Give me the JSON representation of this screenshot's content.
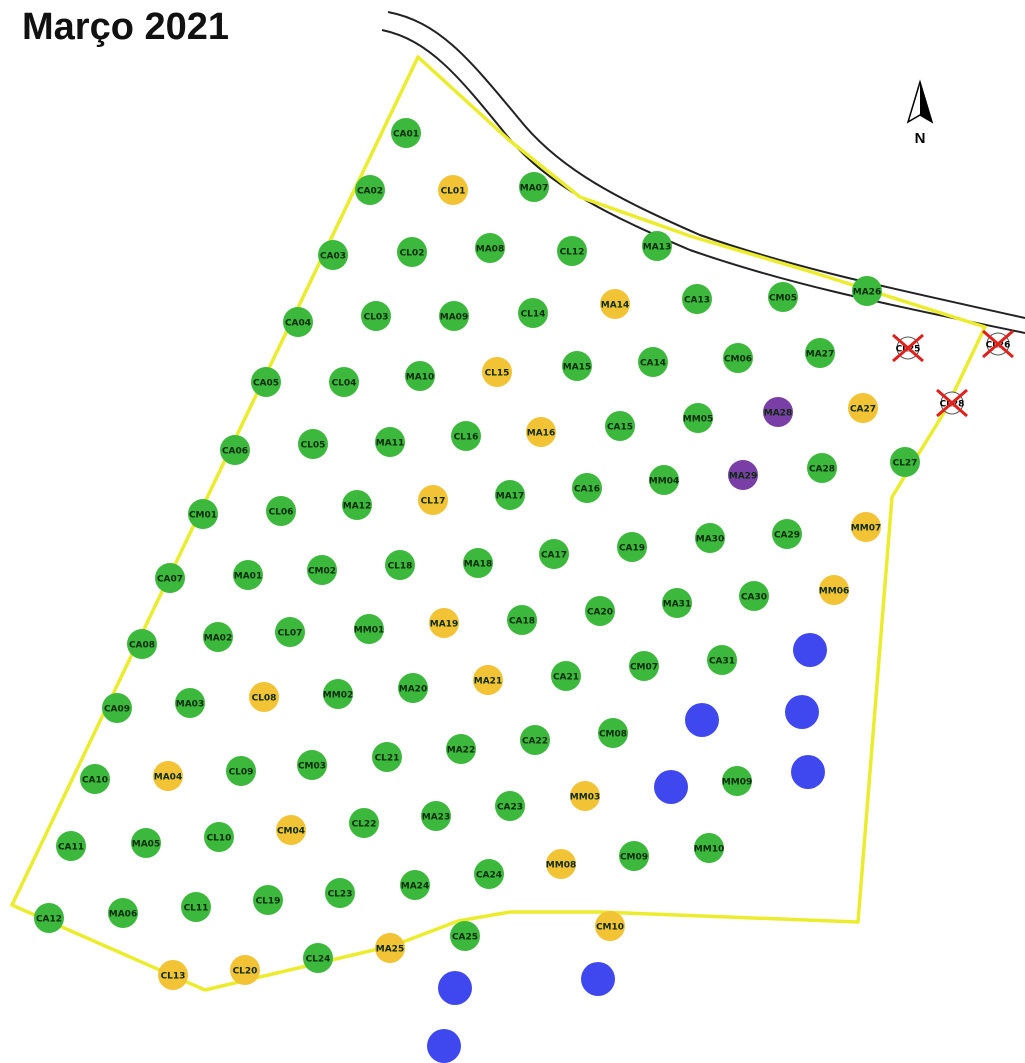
{
  "title": "Março 2021",
  "north_label": "N",
  "colors": {
    "healthy": "#3cb93c",
    "warning": "#f2c335",
    "purple": "#7a3fa6",
    "new_planting": "#3f48ee",
    "boundary": "#ecec2f",
    "removed_mark": "#e0201b",
    "road": "#222222"
  },
  "trees": [
    {
      "label": "CA01",
      "status": "healthy"
    },
    {
      "label": "CA02",
      "status": "healthy"
    },
    {
      "label": "CL01",
      "status": "warning"
    },
    {
      "label": "MA07",
      "status": "healthy"
    },
    {
      "label": "CA03",
      "status": "healthy"
    },
    {
      "label": "CL02",
      "status": "healthy"
    },
    {
      "label": "MA08",
      "status": "healthy"
    },
    {
      "label": "CL12",
      "status": "healthy"
    },
    {
      "label": "MA13",
      "status": "healthy"
    },
    {
      "label": "CA04",
      "status": "healthy"
    },
    {
      "label": "CL03",
      "status": "healthy"
    },
    {
      "label": "MA09",
      "status": "healthy"
    },
    {
      "label": "CL14",
      "status": "healthy"
    },
    {
      "label": "MA14",
      "status": "warning"
    },
    {
      "label": "CA13",
      "status": "healthy"
    },
    {
      "label": "CM05",
      "status": "healthy"
    },
    {
      "label": "MA26",
      "status": "healthy"
    },
    {
      "label": "CA05",
      "status": "healthy"
    },
    {
      "label": "CL04",
      "status": "healthy"
    },
    {
      "label": "MA10",
      "status": "healthy"
    },
    {
      "label": "CL15",
      "status": "warning"
    },
    {
      "label": "MA15",
      "status": "healthy"
    },
    {
      "label": "CA14",
      "status": "healthy"
    },
    {
      "label": "CM06",
      "status": "healthy"
    },
    {
      "label": "MA27",
      "status": "healthy"
    },
    {
      "label": "CA06",
      "status": "healthy"
    },
    {
      "label": "CL05",
      "status": "healthy"
    },
    {
      "label": "MA11",
      "status": "healthy"
    },
    {
      "label": "CL16",
      "status": "healthy"
    },
    {
      "label": "MA16",
      "status": "warning"
    },
    {
      "label": "CA15",
      "status": "healthy"
    },
    {
      "label": "MM05",
      "status": "healthy"
    },
    {
      "label": "MA28",
      "status": "purple"
    },
    {
      "label": "CA27",
      "status": "warning"
    },
    {
      "label": "CM01",
      "status": "healthy"
    },
    {
      "label": "CL06",
      "status": "healthy"
    },
    {
      "label": "MA12",
      "status": "healthy"
    },
    {
      "label": "CL17",
      "status": "warning"
    },
    {
      "label": "MA17",
      "status": "healthy"
    },
    {
      "label": "CA16",
      "status": "healthy"
    },
    {
      "label": "MM04",
      "status": "healthy"
    },
    {
      "label": "MA29",
      "status": "purple"
    },
    {
      "label": "CA28",
      "status": "healthy"
    },
    {
      "label": "CL27",
      "status": "healthy"
    },
    {
      "label": "CA07",
      "status": "healthy"
    },
    {
      "label": "MA01",
      "status": "healthy"
    },
    {
      "label": "CM02",
      "status": "healthy"
    },
    {
      "label": "CL18",
      "status": "healthy"
    },
    {
      "label": "MA18",
      "status": "healthy"
    },
    {
      "label": "CA17",
      "status": "healthy"
    },
    {
      "label": "CA19",
      "status": "healthy"
    },
    {
      "label": "MA30",
      "status": "healthy"
    },
    {
      "label": "CA29",
      "status": "healthy"
    },
    {
      "label": "MM07",
      "status": "warning"
    },
    {
      "label": "CA08",
      "status": "healthy"
    },
    {
      "label": "MA02",
      "status": "healthy"
    },
    {
      "label": "CL07",
      "status": "healthy"
    },
    {
      "label": "MM01",
      "status": "healthy"
    },
    {
      "label": "MA19",
      "status": "warning"
    },
    {
      "label": "CA18",
      "status": "healthy"
    },
    {
      "label": "CA20",
      "status": "healthy"
    },
    {
      "label": "MA31",
      "status": "healthy"
    },
    {
      "label": "CA30",
      "status": "healthy"
    },
    {
      "label": "MM06",
      "status": "warning"
    },
    {
      "label": "CA09",
      "status": "healthy"
    },
    {
      "label": "MA03",
      "status": "healthy"
    },
    {
      "label": "CL08",
      "status": "warning"
    },
    {
      "label": "MM02",
      "status": "healthy"
    },
    {
      "label": "MA20",
      "status": "healthy"
    },
    {
      "label": "MA21",
      "status": "warning"
    },
    {
      "label": "CA21",
      "status": "healthy"
    },
    {
      "label": "CM07",
      "status": "healthy"
    },
    {
      "label": "CA31",
      "status": "healthy"
    },
    {
      "label": "CA10",
      "status": "healthy"
    },
    {
      "label": "MA04",
      "status": "warning"
    },
    {
      "label": "CL09",
      "status": "healthy"
    },
    {
      "label": "CM03",
      "status": "healthy"
    },
    {
      "label": "CL21",
      "status": "healthy"
    },
    {
      "label": "MA22",
      "status": "healthy"
    },
    {
      "label": "CA22",
      "status": "healthy"
    },
    {
      "label": "CM08",
      "status": "healthy"
    },
    {
      "label": "MM09",
      "status": "healthy"
    },
    {
      "label": "CA11",
      "status": "healthy"
    },
    {
      "label": "MA05",
      "status": "healthy"
    },
    {
      "label": "CL10",
      "status": "healthy"
    },
    {
      "label": "CM04",
      "status": "warning"
    },
    {
      "label": "CL22",
      "status": "healthy"
    },
    {
      "label": "MA23",
      "status": "healthy"
    },
    {
      "label": "CA23",
      "status": "healthy"
    },
    {
      "label": "MM03",
      "status": "warning"
    },
    {
      "label": "CA12",
      "status": "healthy"
    },
    {
      "label": "MA06",
      "status": "healthy"
    },
    {
      "label": "CL11",
      "status": "healthy"
    },
    {
      "label": "CL19",
      "status": "healthy"
    },
    {
      "label": "CL23",
      "status": "healthy"
    },
    {
      "label": "MA24",
      "status": "healthy"
    },
    {
      "label": "CA24",
      "status": "healthy"
    },
    {
      "label": "MM08",
      "status": "warning"
    },
    {
      "label": "CM09",
      "status": "healthy"
    },
    {
      "label": "MM10",
      "status": "healthy"
    },
    {
      "label": "CL13",
      "status": "warning"
    },
    {
      "label": "CL20",
      "status": "warning"
    },
    {
      "label": "CL24",
      "status": "healthy"
    },
    {
      "label": "MA25",
      "status": "warning"
    },
    {
      "label": "CA25",
      "status": "healthy"
    },
    {
      "label": "CM10",
      "status": "warning"
    }
  ],
  "removed_trees": [
    {
      "label": "CL25"
    },
    {
      "label": "CL26"
    },
    {
      "label": "CL28"
    }
  ]
}
